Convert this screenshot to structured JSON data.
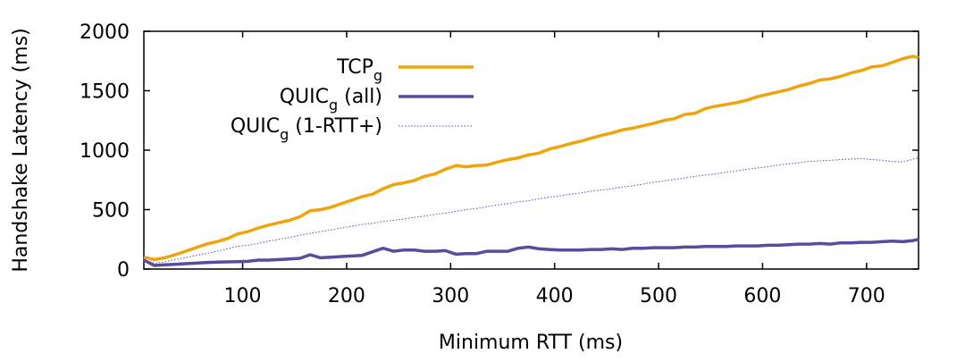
{
  "chart_data": {
    "type": "line",
    "title": "",
    "xlabel": "Minimum RTT (ms)",
    "ylabel": "Handshake Latency (ms)",
    "xlim": [
      5,
      750
    ],
    "ylim": [
      0,
      2000
    ],
    "xticks": [
      100,
      200,
      300,
      400,
      500,
      600,
      700
    ],
    "yticks": [
      0,
      500,
      1000,
      1500,
      2000
    ],
    "grid": false,
    "legend_position": "top-left",
    "x": [
      5,
      15,
      25,
      35,
      45,
      55,
      65,
      75,
      85,
      95,
      105,
      115,
      125,
      135,
      145,
      155,
      165,
      175,
      185,
      195,
      205,
      215,
      225,
      235,
      245,
      255,
      265,
      275,
      285,
      295,
      305,
      315,
      325,
      335,
      345,
      355,
      365,
      375,
      385,
      395,
      405,
      415,
      425,
      435,
      445,
      455,
      465,
      475,
      485,
      495,
      505,
      515,
      525,
      535,
      545,
      555,
      565,
      575,
      585,
      595,
      605,
      615,
      625,
      635,
      645,
      655,
      665,
      675,
      685,
      695,
      705,
      715,
      725,
      735,
      745,
      750
    ],
    "series": [
      {
        "name": "TCP",
        "name_sub": "g",
        "name_suffix": "",
        "color": "#f0a30a",
        "style": "solid-thick",
        "values": [
          100,
          80,
          95,
          120,
          150,
          180,
          210,
          230,
          255,
          295,
          315,
          345,
          370,
          390,
          410,
          440,
          490,
          500,
          520,
          550,
          580,
          610,
          630,
          675,
          710,
          725,
          745,
          780,
          800,
          840,
          870,
          860,
          870,
          875,
          900,
          920,
          935,
          960,
          975,
          1010,
          1030,
          1055,
          1075,
          1100,
          1125,
          1145,
          1170,
          1185,
          1205,
          1225,
          1250,
          1265,
          1300,
          1310,
          1350,
          1370,
          1385,
          1400,
          1420,
          1450,
          1470,
          1490,
          1510,
          1540,
          1560,
          1590,
          1600,
          1620,
          1650,
          1670,
          1700,
          1710,
          1740,
          1770,
          1790,
          1775
        ]
      },
      {
        "name": "QUIC",
        "name_sub": "g",
        "name_suffix": " (all)",
        "color": "#5b4a9e",
        "style": "solid-thick",
        "values": [
          75,
          30,
          35,
          40,
          45,
          50,
          55,
          58,
          60,
          62,
          65,
          75,
          75,
          80,
          85,
          90,
          120,
          95,
          100,
          105,
          110,
          115,
          145,
          175,
          150,
          160,
          160,
          150,
          150,
          155,
          125,
          130,
          130,
          150,
          150,
          150,
          175,
          185,
          170,
          165,
          160,
          160,
          160,
          165,
          165,
          170,
          165,
          175,
          175,
          180,
          180,
          180,
          185,
          185,
          190,
          190,
          190,
          195,
          195,
          195,
          200,
          200,
          205,
          210,
          210,
          215,
          210,
          220,
          220,
          225,
          225,
          230,
          235,
          230,
          240,
          250
        ]
      },
      {
        "name": "QUIC",
        "name_sub": "g",
        "name_suffix": " (1-RTT+)",
        "color": "#5b4a9e",
        "style": "dotted-thin",
        "values": [
          80,
          50,
          60,
          80,
          95,
          115,
          130,
          150,
          170,
          190,
          200,
          215,
          235,
          250,
          265,
          285,
          300,
          315,
          330,
          345,
          360,
          375,
          385,
          400,
          410,
          420,
          435,
          445,
          460,
          470,
          485,
          500,
          510,
          525,
          540,
          550,
          565,
          575,
          590,
          605,
          615,
          630,
          640,
          655,
          665,
          675,
          690,
          700,
          715,
          730,
          740,
          755,
          765,
          780,
          790,
          800,
          815,
          825,
          840,
          850,
          860,
          875,
          885,
          895,
          905,
          910,
          915,
          920,
          925,
          930,
          920,
          915,
          905,
          900,
          925,
          935
        ]
      }
    ]
  }
}
